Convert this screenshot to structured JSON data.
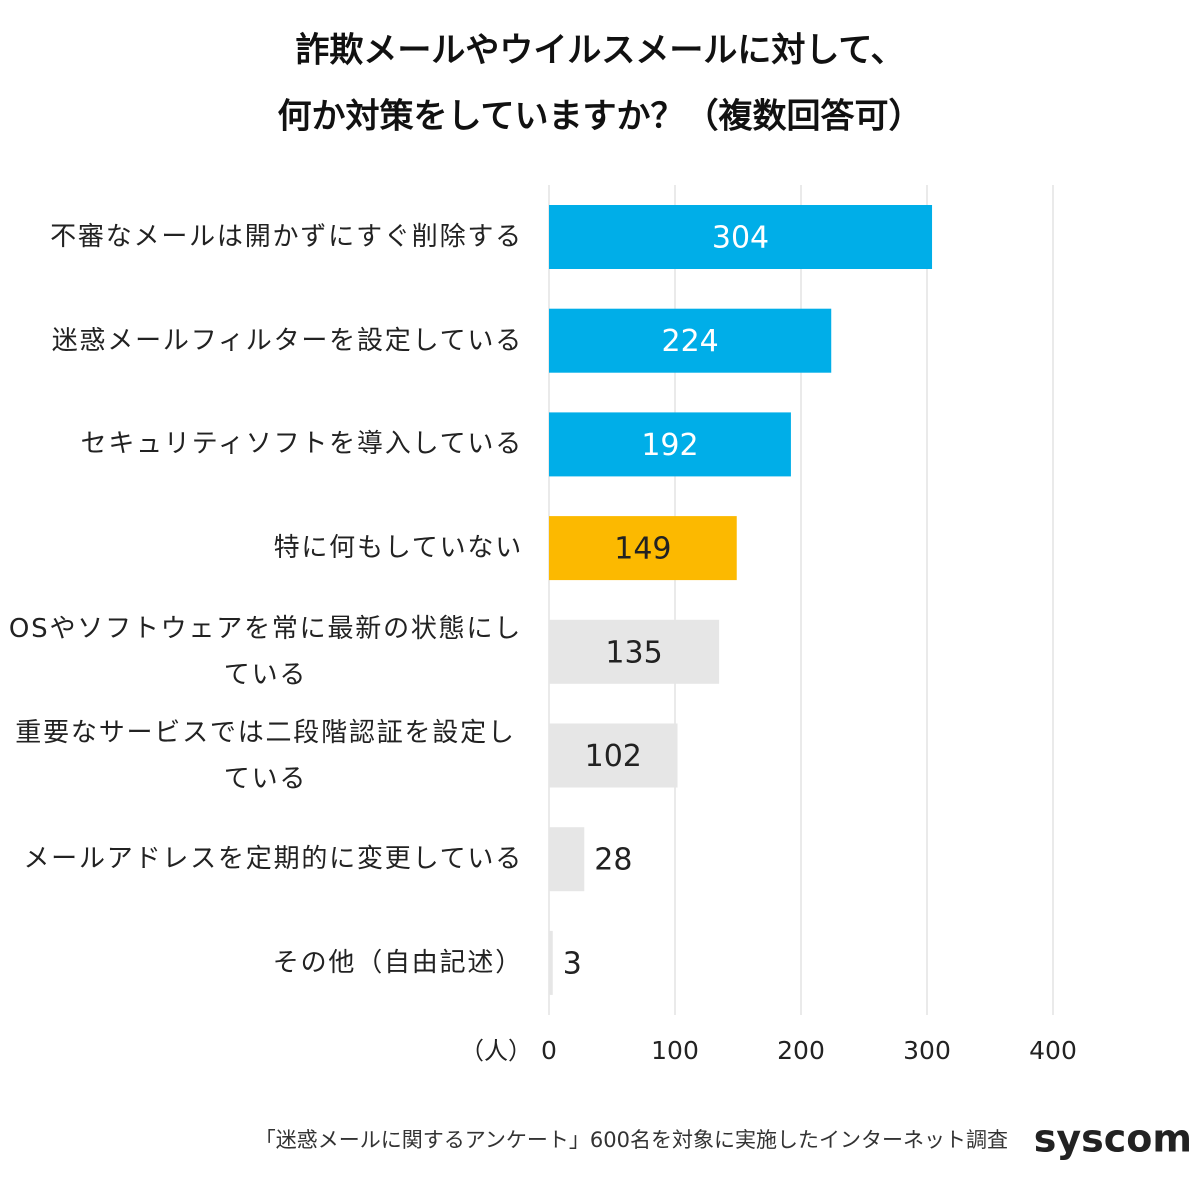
{
  "chart_data": {
    "type": "hbar",
    "title": [
      "詐欺メールやウイルスメールに対して、",
      "何か対策をしていますか？（複数回答可）"
    ],
    "categories": [
      "不審なメールは開かずにすぐ削除する",
      "迷惑メールフィルターを設定している",
      "セキュリティソフトを導入している",
      "特に何もしていない",
      "OSやソフトウェアを常に最新の状態にしている",
      "重要なサービスでは二段階認証を設定している",
      "メールアドレスを定期的に変更している",
      "その他（自由記述）"
    ],
    "values": [
      304,
      224,
      192,
      149,
      135,
      102,
      28,
      3
    ],
    "colors": [
      "#00aee8",
      "#00aee8",
      "#00aee8",
      "#fcb900",
      "#e6e6e6",
      "#e6e6e6",
      "#e6e6e6",
      "#e6e6e6"
    ],
    "value_label_colors": [
      "#ffffff",
      "#ffffff",
      "#ffffff",
      "#222222",
      "#222222",
      "#222222",
      "#222222",
      "#222222"
    ],
    "xlim": [
      0,
      400
    ],
    "xticks": [
      0,
      100,
      200,
      300,
      400
    ],
    "xlabel": "（人）",
    "grid": true,
    "source": "「迷惑メールに関するアンケート」600名を対象に実施したインターネット調査",
    "logo": "syscom"
  }
}
